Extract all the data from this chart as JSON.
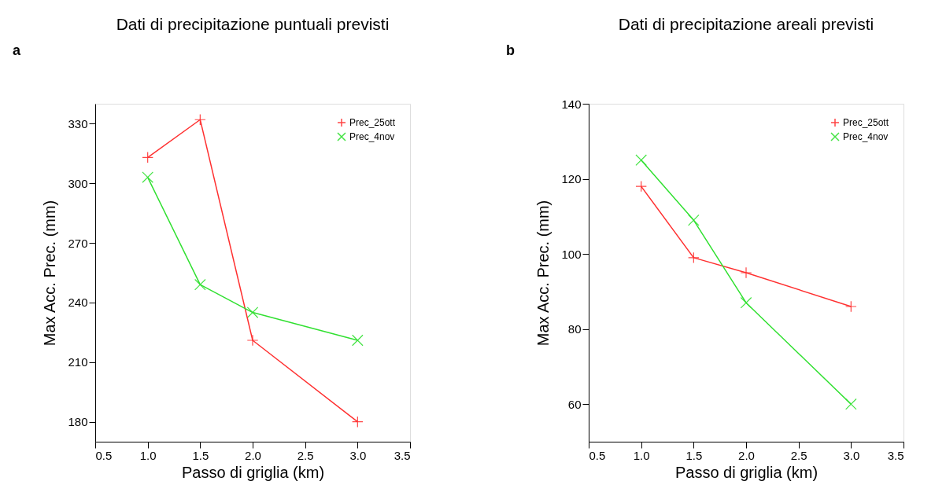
{
  "chart_data": [
    {
      "type": "line",
      "title": "Dati di precipitazione puntuali previsti",
      "xlabel": "Passo di griglia (km)",
      "ylabel": "Max Acc. Prec. (mm)",
      "annotations": [
        "a"
      ],
      "x": [
        1.0,
        1.5,
        2.0,
        3.0
      ],
      "xlim": [
        0.5,
        3.5
      ],
      "xticks": [
        {
          "value": 0.5,
          "label": "0.5"
        },
        {
          "value": 1.0,
          "label": "1.0"
        },
        {
          "value": 1.5,
          "label": "1.5"
        },
        {
          "value": 2.0,
          "label": "2.0"
        },
        {
          "value": 2.5,
          "label": "2.5"
        },
        {
          "value": 3.0,
          "label": "3.0"
        },
        {
          "value": 3.5,
          "label": "3.5"
        }
      ],
      "ylim": [
        170,
        340
      ],
      "yticks": [
        180,
        210,
        240,
        270,
        300,
        330
      ],
      "grid": false,
      "legend": "top right",
      "line_style": "solid",
      "series": [
        {
          "name": "Prec_25ott",
          "color": "#ff3030",
          "marker": "cross",
          "values": [
            313,
            332,
            221,
            180
          ]
        },
        {
          "name": "Prec_4nov",
          "color": "#30e030",
          "marker": "x",
          "values": [
            303,
            249,
            235,
            221
          ]
        }
      ]
    },
    {
      "type": "line",
      "title": "Dati di precipitazione areali previsti",
      "xlabel": "Passo di griglia (km)",
      "ylabel": "Max Acc. Prec. (mm)",
      "annotations": [
        "b"
      ],
      "x": [
        1.0,
        1.5,
        2.0,
        3.0
      ],
      "xlim": [
        0.5,
        3.5
      ],
      "xticks": [
        {
          "value": 0.5,
          "label": "0.5"
        },
        {
          "value": 1.0,
          "label": "1.0"
        },
        {
          "value": 1.5,
          "label": "1.5"
        },
        {
          "value": 2.0,
          "label": "2.0"
        },
        {
          "value": 2.5,
          "label": "2.5"
        },
        {
          "value": 3.0,
          "label": "3.0"
        },
        {
          "value": 3.5,
          "label": "3.5"
        }
      ],
      "ylim": [
        50,
        140
      ],
      "yticks": [
        60,
        80,
        100,
        120,
        140
      ],
      "grid": false,
      "legend": "top right",
      "line_style": "solid",
      "series": [
        {
          "name": "Prec_25ott",
          "color": "#ff3030",
          "marker": "cross",
          "values": [
            118,
            99,
            95,
            86
          ]
        },
        {
          "name": "Prec_4nov",
          "color": "#30e030",
          "marker": "x",
          "values": [
            125,
            109,
            87,
            60
          ]
        }
      ]
    }
  ]
}
